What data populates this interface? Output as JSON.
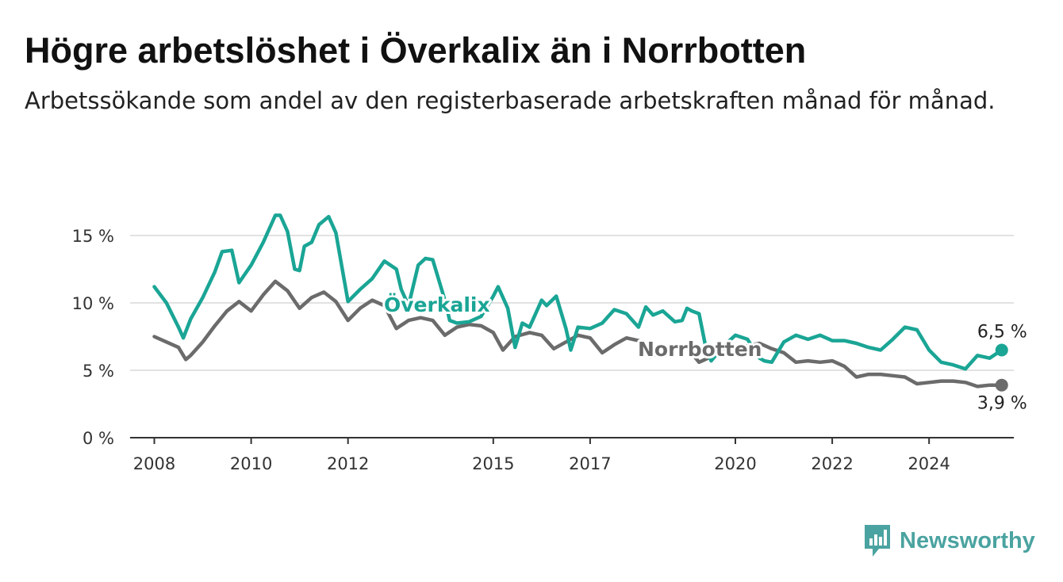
{
  "header": {
    "title": "Högre arbetslöshet i Överkalix än i Norrbotten",
    "subtitle": "Arbetssökande som andel av den registerbaserade arbetskraften månad för månad."
  },
  "brand": {
    "name": "Newsworthy",
    "icon": "newsworthy-logo-icon",
    "color": "#4aa3a0"
  },
  "chart_data": {
    "type": "line",
    "title": "Högre arbetslöshet i Överkalix än i Norrbotten",
    "subtitle": "Arbetssökande som andel av den registerbaserade arbetskraften månad för månad.",
    "xlabel": "",
    "ylabel": "",
    "ylim": [
      0,
      17
    ],
    "xlim": [
      2007.5,
      2025.75
    ],
    "grid": true,
    "y_ticks": [
      {
        "value": 0,
        "label": "0 %"
      },
      {
        "value": 5,
        "label": "5 %"
      },
      {
        "value": 10,
        "label": "10 %"
      },
      {
        "value": 15,
        "label": "15 %"
      }
    ],
    "x_ticks": [
      {
        "value": 2008,
        "label": "2008"
      },
      {
        "value": 2010,
        "label": "2010"
      },
      {
        "value": 2012,
        "label": "2012"
      },
      {
        "value": 2015,
        "label": "2015"
      },
      {
        "value": 2017,
        "label": "2017"
      },
      {
        "value": 2020,
        "label": "2020"
      },
      {
        "value": 2022,
        "label": "2022"
      },
      {
        "value": 2024,
        "label": "2024"
      }
    ],
    "series": [
      {
        "name": "Överkalix",
        "color": "#1aa595",
        "label": "Överkalix",
        "end_label": "6,5 %",
        "points": [
          [
            2008.0,
            11.2
          ],
          [
            2008.25,
            10.0
          ],
          [
            2008.5,
            8.2
          ],
          [
            2008.6,
            7.4
          ],
          [
            2008.75,
            8.8
          ],
          [
            2009.0,
            10.4
          ],
          [
            2009.25,
            12.3
          ],
          [
            2009.4,
            13.8
          ],
          [
            2009.6,
            13.9
          ],
          [
            2009.75,
            11.5
          ],
          [
            2010.0,
            12.8
          ],
          [
            2010.25,
            14.5
          ],
          [
            2010.5,
            16.5
          ],
          [
            2010.6,
            16.5
          ],
          [
            2010.75,
            15.3
          ],
          [
            2010.9,
            12.5
          ],
          [
            2011.0,
            12.4
          ],
          [
            2011.1,
            14.2
          ],
          [
            2011.25,
            14.5
          ],
          [
            2011.4,
            15.8
          ],
          [
            2011.6,
            16.4
          ],
          [
            2011.75,
            15.2
          ],
          [
            2012.0,
            10.1
          ],
          [
            2012.25,
            11.0
          ],
          [
            2012.5,
            11.8
          ],
          [
            2012.75,
            13.1
          ],
          [
            2013.0,
            12.5
          ],
          [
            2013.1,
            11.0
          ],
          [
            2013.25,
            9.8
          ],
          [
            2013.45,
            12.8
          ],
          [
            2013.6,
            13.3
          ],
          [
            2013.75,
            13.2
          ],
          [
            2014.0,
            10.2
          ],
          [
            2014.1,
            8.7
          ],
          [
            2014.25,
            8.5
          ],
          [
            2014.5,
            8.6
          ],
          [
            2014.75,
            9.0
          ],
          [
            2015.0,
            10.5
          ],
          [
            2015.1,
            11.2
          ],
          [
            2015.3,
            9.6
          ],
          [
            2015.45,
            6.7
          ],
          [
            2015.6,
            8.5
          ],
          [
            2015.75,
            8.2
          ],
          [
            2016.0,
            10.2
          ],
          [
            2016.1,
            9.8
          ],
          [
            2016.3,
            10.5
          ],
          [
            2016.5,
            8.1
          ],
          [
            2016.6,
            6.5
          ],
          [
            2016.75,
            8.2
          ],
          [
            2017.0,
            8.1
          ],
          [
            2017.25,
            8.5
          ],
          [
            2017.5,
            9.5
          ],
          [
            2017.75,
            9.2
          ],
          [
            2018.0,
            8.2
          ],
          [
            2018.15,
            9.7
          ],
          [
            2018.3,
            9.1
          ],
          [
            2018.5,
            9.4
          ],
          [
            2018.75,
            8.6
          ],
          [
            2018.9,
            8.7
          ],
          [
            2019.0,
            9.6
          ],
          [
            2019.1,
            9.4
          ],
          [
            2019.25,
            9.2
          ],
          [
            2019.4,
            6.5
          ],
          [
            2019.5,
            5.7
          ],
          [
            2019.75,
            6.8
          ],
          [
            2020.0,
            7.6
          ],
          [
            2020.25,
            7.3
          ],
          [
            2020.5,
            5.9
          ],
          [
            2020.6,
            5.7
          ],
          [
            2020.75,
            5.6
          ],
          [
            2021.0,
            7.1
          ],
          [
            2021.25,
            7.6
          ],
          [
            2021.5,
            7.3
          ],
          [
            2021.75,
            7.6
          ],
          [
            2022.0,
            7.2
          ],
          [
            2022.25,
            7.2
          ],
          [
            2022.5,
            7.0
          ],
          [
            2022.75,
            6.7
          ],
          [
            2023.0,
            6.5
          ],
          [
            2023.25,
            7.3
          ],
          [
            2023.5,
            8.2
          ],
          [
            2023.75,
            8.0
          ],
          [
            2024.0,
            6.5
          ],
          [
            2024.25,
            5.6
          ],
          [
            2024.5,
            5.4
          ],
          [
            2024.75,
            5.1
          ],
          [
            2025.0,
            6.1
          ],
          [
            2025.25,
            5.9
          ],
          [
            2025.5,
            6.5
          ]
        ]
      },
      {
        "name": "Norrbotten",
        "color": "#6b6b6b",
        "label": "Norrbotten",
        "end_label": "3,9 %",
        "points": [
          [
            2008.0,
            7.5
          ],
          [
            2008.25,
            7.1
          ],
          [
            2008.5,
            6.7
          ],
          [
            2008.65,
            5.8
          ],
          [
            2008.75,
            6.1
          ],
          [
            2009.0,
            7.1
          ],
          [
            2009.25,
            8.3
          ],
          [
            2009.5,
            9.4
          ],
          [
            2009.75,
            10.1
          ],
          [
            2010.0,
            9.4
          ],
          [
            2010.25,
            10.6
          ],
          [
            2010.5,
            11.6
          ],
          [
            2010.75,
            10.9
          ],
          [
            2011.0,
            9.6
          ],
          [
            2011.25,
            10.4
          ],
          [
            2011.5,
            10.8
          ],
          [
            2011.75,
            10.1
          ],
          [
            2012.0,
            8.7
          ],
          [
            2012.25,
            9.6
          ],
          [
            2012.5,
            10.2
          ],
          [
            2012.75,
            9.8
          ],
          [
            2013.0,
            8.1
          ],
          [
            2013.25,
            8.7
          ],
          [
            2013.5,
            8.9
          ],
          [
            2013.75,
            8.7
          ],
          [
            2014.0,
            7.6
          ],
          [
            2014.25,
            8.2
          ],
          [
            2014.5,
            8.4
          ],
          [
            2014.75,
            8.3
          ],
          [
            2015.0,
            7.8
          ],
          [
            2015.2,
            6.5
          ],
          [
            2015.45,
            7.5
          ],
          [
            2015.75,
            7.8
          ],
          [
            2016.0,
            7.6
          ],
          [
            2016.25,
            6.6
          ],
          [
            2016.5,
            7.1
          ],
          [
            2016.75,
            7.6
          ],
          [
            2017.0,
            7.4
          ],
          [
            2017.25,
            6.3
          ],
          [
            2017.5,
            6.9
          ],
          [
            2017.75,
            7.4
          ],
          [
            2018.0,
            7.2
          ],
          [
            2018.25,
            6.0
          ],
          [
            2018.5,
            6.4
          ],
          [
            2018.75,
            6.8
          ],
          [
            2019.0,
            6.7
          ],
          [
            2019.25,
            5.6
          ],
          [
            2019.5,
            6.0
          ],
          [
            2019.75,
            6.6
          ],
          [
            2020.0,
            6.7
          ],
          [
            2020.25,
            6.8
          ],
          [
            2020.5,
            7.0
          ],
          [
            2020.75,
            6.6
          ],
          [
            2021.0,
            6.3
          ],
          [
            2021.25,
            5.6
          ],
          [
            2021.5,
            5.7
          ],
          [
            2021.75,
            5.6
          ],
          [
            2022.0,
            5.7
          ],
          [
            2022.25,
            5.3
          ],
          [
            2022.5,
            4.5
          ],
          [
            2022.75,
            4.7
          ],
          [
            2023.0,
            4.7
          ],
          [
            2023.25,
            4.6
          ],
          [
            2023.5,
            4.5
          ],
          [
            2023.75,
            4.0
          ],
          [
            2024.0,
            4.1
          ],
          [
            2024.25,
            4.2
          ],
          [
            2024.5,
            4.2
          ],
          [
            2024.75,
            4.1
          ],
          [
            2025.0,
            3.8
          ],
          [
            2025.25,
            3.9
          ],
          [
            2025.5,
            3.9
          ]
        ]
      }
    ]
  }
}
